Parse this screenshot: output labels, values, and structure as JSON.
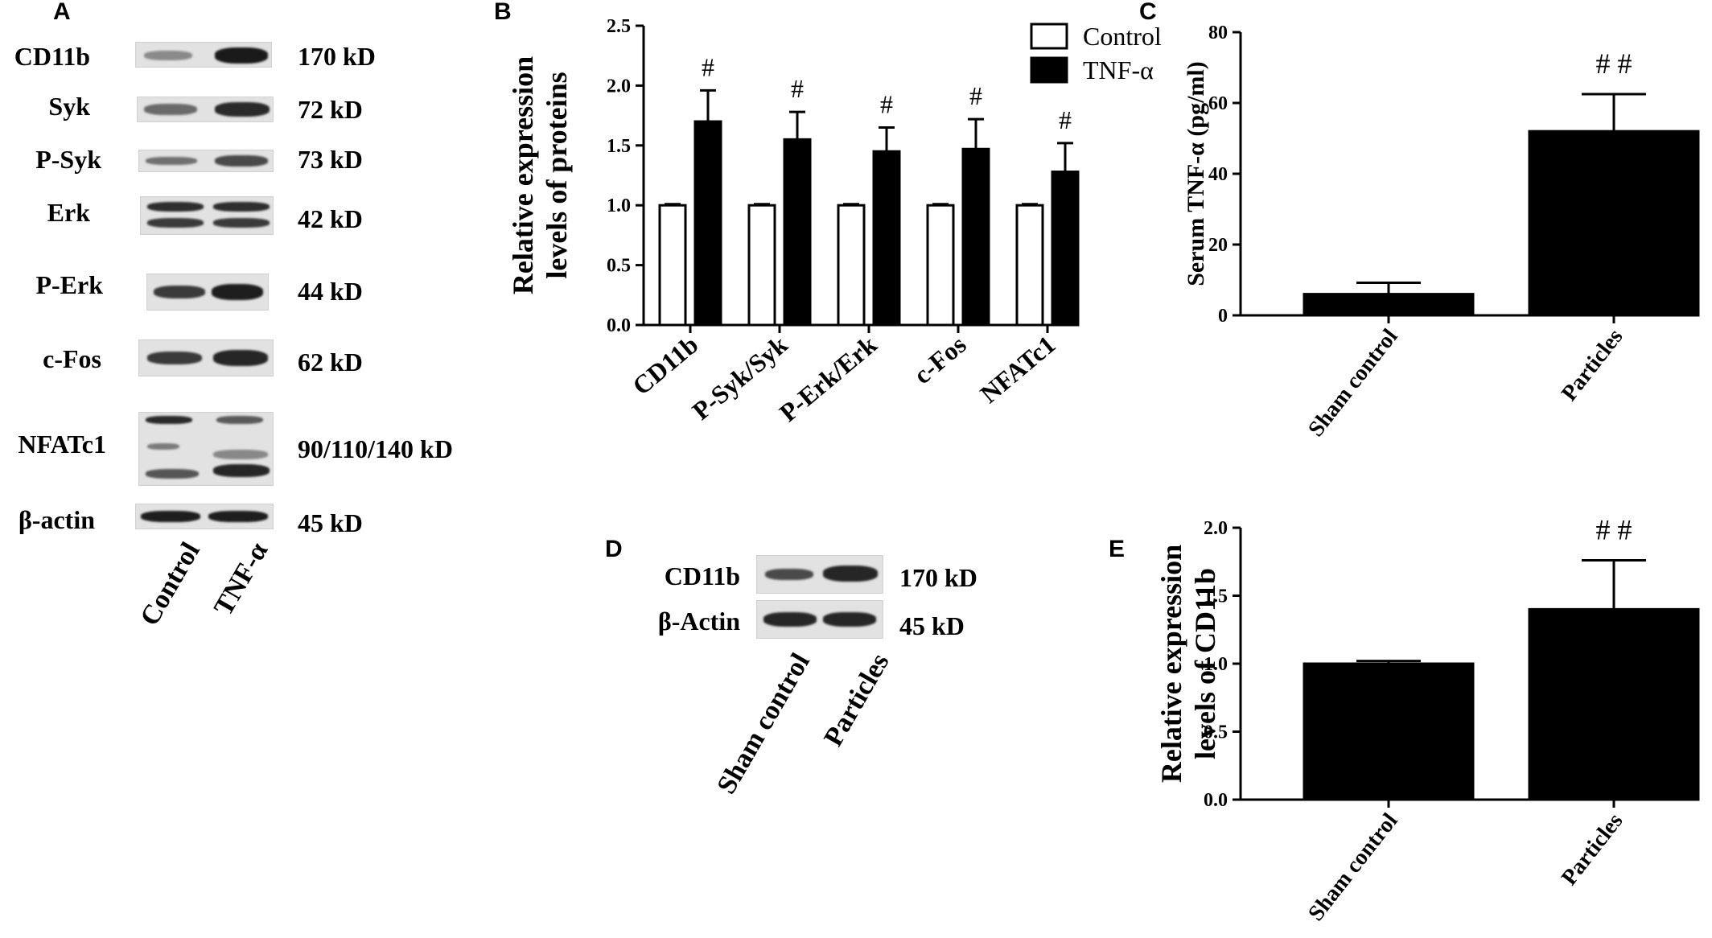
{
  "panels": {
    "A": "A",
    "B": "B",
    "C": "C",
    "D": "D",
    "E": "E"
  },
  "blot_a": {
    "rows": [
      {
        "protein": "CD11b",
        "kd": "170 kD"
      },
      {
        "protein": "Syk",
        "kd": "72 kD"
      },
      {
        "protein": "P-Syk",
        "kd": "73 kD"
      },
      {
        "protein": "Erk",
        "kd": "42 kD"
      },
      {
        "protein": "P-Erk",
        "kd": "44 kD"
      },
      {
        "protein": "c-Fos",
        "kd": "62 kD"
      },
      {
        "protein": "NFATc1",
        "kd": "90/110/140 kD"
      },
      {
        "protein": "β-actin",
        "kd": "45 kD"
      }
    ],
    "lanes": [
      "Control",
      "TNF-α"
    ]
  },
  "blot_d": {
    "rows": [
      {
        "protein": "CD11b",
        "kd": "170 kD"
      },
      {
        "protein": "β-Actin",
        "kd": "45 kD"
      }
    ],
    "lanes": [
      "Sham control",
      "Particles"
    ]
  },
  "chart_data": [
    {
      "panel": "B",
      "type": "bar",
      "categories": [
        "CD11b",
        "P-Syk/Syk",
        "P-Erk/Erk",
        "c-Fos",
        "NFATc1"
      ],
      "series": [
        {
          "name": "Control",
          "values": [
            1.0,
            1.0,
            1.0,
            1.0,
            1.0
          ],
          "errors": [
            0.01,
            0.01,
            0.01,
            0.01,
            0.01
          ],
          "color": "#ffffff"
        },
        {
          "name": "TNF-α",
          "values": [
            1.7,
            1.55,
            1.45,
            1.47,
            1.28
          ],
          "errors": [
            0.26,
            0.23,
            0.2,
            0.25,
            0.24
          ],
          "color": "#000000"
        }
      ],
      "annotations": [
        "#",
        "#",
        "#",
        "#",
        "#"
      ],
      "ylabel": "Relative expression levels of proteins",
      "ylim": [
        0,
        2.5
      ],
      "yticks": [
        "0.0",
        "0.5",
        "1.0",
        "1.5",
        "2.0",
        "2.5"
      ],
      "legend": "top-right",
      "grid": false
    },
    {
      "panel": "C",
      "type": "bar",
      "categories": [
        "Sham control",
        "Particles"
      ],
      "values": [
        6,
        52
      ],
      "errors": [
        3.2,
        10.5
      ],
      "annotations": [
        "",
        "# #"
      ],
      "ylabel": "Serum TNF-α (pg/ml)",
      "ylim": [
        0,
        80
      ],
      "yticks": [
        "0",
        "20",
        "40",
        "60",
        "80"
      ],
      "grid": false
    },
    {
      "panel": "E",
      "type": "bar",
      "categories": [
        "Sham control",
        "Particles"
      ],
      "values": [
        1.0,
        1.4
      ],
      "errors": [
        0.02,
        0.36
      ],
      "annotations": [
        "",
        "# #"
      ],
      "ylabel": "Relative expression levels of CD11b",
      "ylim": [
        0,
        2.0
      ],
      "yticks": [
        "0.0",
        "0.5",
        "1.0",
        "1.5",
        "2.0"
      ],
      "grid": false
    }
  ]
}
